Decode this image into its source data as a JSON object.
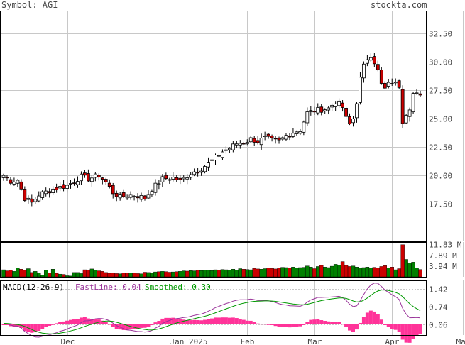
{
  "header": {
    "symbol_label": "Symbol: AGI",
    "brand": "stockta.com"
  },
  "colors": {
    "up": "#008000",
    "down": "#cc0000",
    "candle_down": "#cc0000",
    "text": "#444444",
    "grid": "#c8c8c8",
    "fastline": "#993399",
    "smoothed": "#009900",
    "histogram": "#ff3399"
  },
  "price_axis": {
    "ticks": [
      "32.50",
      "30.00",
      "27.50",
      "25.00",
      "22.50",
      "20.00",
      "17.50"
    ],
    "tick_values": [
      32.5,
      30.0,
      27.5,
      25.0,
      22.5,
      20.0,
      17.5
    ],
    "ylim": [
      14.2,
      34.5
    ]
  },
  "volume_axis": {
    "ticks": [
      "11.83 M",
      "7.89 M",
      "3.94 M"
    ],
    "tick_values": [
      11.83,
      7.89,
      3.94
    ],
    "ylim": [
      0,
      12.8
    ]
  },
  "macd": {
    "label": "MACD(12-26-9)",
    "fast_label": "FastLine: 0.04",
    "smooth_label": "Smoothed: 0.30",
    "ticks": [
      "1.42",
      "0.74",
      "0.06"
    ],
    "tick_values": [
      1.42,
      0.74,
      0.06
    ],
    "ylim": [
      -0.35,
      1.75
    ]
  },
  "x_axis": {
    "labels": [
      "Dec",
      "Jan 2025",
      "Feb",
      "Mar",
      "Apr",
      "May"
    ],
    "label_index": [
      18,
      49,
      69,
      88,
      110,
      130
    ]
  },
  "chart_data": {
    "type": "candlestick",
    "x_unit": "trading day",
    "price_anchors": [
      [
        0,
        20.0
      ],
      [
        2,
        19.5
      ],
      [
        4,
        19.6
      ],
      [
        6,
        18.0
      ],
      [
        8,
        17.6
      ],
      [
        10,
        18.3
      ],
      [
        14,
        18.8
      ],
      [
        18,
        19.1
      ],
      [
        20,
        19.5
      ],
      [
        22,
        19.9
      ],
      [
        24,
        19.7
      ],
      [
        27,
        20.0
      ],
      [
        29,
        19.4
      ],
      [
        31,
        18.5
      ],
      [
        33,
        18.1
      ],
      [
        36,
        18.3
      ],
      [
        38,
        18.2
      ],
      [
        40,
        18.0
      ],
      [
        42,
        18.8
      ],
      [
        45,
        19.7
      ],
      [
        48,
        19.8
      ],
      [
        50,
        19.5
      ],
      [
        53,
        20.2
      ],
      [
        56,
        20.6
      ],
      [
        59,
        21.3
      ],
      [
        62,
        22.1
      ],
      [
        64,
        22.4
      ],
      [
        66,
        22.8
      ],
      [
        68,
        22.9
      ],
      [
        70,
        23.2
      ],
      [
        72,
        23.0
      ],
      [
        74,
        23.3
      ],
      [
        76,
        23.1
      ],
      [
        78,
        23.0
      ],
      [
        80,
        23.5
      ],
      [
        82,
        23.8
      ],
      [
        84,
        24.0
      ],
      [
        86,
        25.5
      ],
      [
        88,
        25.7
      ],
      [
        90,
        25.8
      ],
      [
        92,
        25.9
      ],
      [
        94,
        26.5
      ],
      [
        95,
        26.3
      ],
      [
        96,
        26.0
      ],
      [
        97,
        25.0
      ],
      [
        98,
        24.5
      ],
      [
        99,
        25.0
      ],
      [
        100,
        26.5
      ],
      [
        101,
        28.5
      ],
      [
        102,
        29.6
      ],
      [
        103,
        30.3
      ],
      [
        104,
        30.6
      ],
      [
        105,
        30.0
      ],
      [
        106,
        29.2
      ],
      [
        107,
        28.0
      ],
      [
        108,
        27.6
      ],
      [
        109,
        28.0
      ],
      [
        110,
        28.2
      ],
      [
        112,
        27.9
      ],
      [
        113,
        24.8
      ],
      [
        114,
        25.5
      ],
      [
        115,
        26.0
      ],
      [
        116,
        27.2
      ],
      [
        117,
        27.1
      ],
      [
        118,
        26.9
      ]
    ],
    "volume": [
      2.6,
      2.2,
      2.4,
      2.0,
      3.2,
      2.8,
      2.4,
      3.0,
      1.6,
      2.0,
      1.4,
      0.6,
      2.4,
      1.4,
      2.8,
      1.3,
      1.0,
      0.9,
      0.4,
      0.3,
      1.6,
      1.6,
      1.2,
      2.6,
      2.4,
      2.9,
      2.4,
      2.2,
      2.0,
      1.6,
      1.3,
      1.5,
      1.2,
      1.1,
      1.5,
      1.4,
      1.5,
      1.4,
      1.2,
      1.1,
      1.7,
      1.6,
      1.5,
      1.8,
      1.9,
      2.0,
      1.9,
      1.7,
      1.8,
      1.9,
      2.0,
      2.2,
      2.1,
      2.3,
      2.2,
      2.4,
      2.3,
      2.5,
      2.4,
      2.3,
      2.6,
      2.5,
      2.7,
      2.6,
      2.4,
      2.8,
      2.5,
      3.0,
      2.8,
      2.7,
      2.6,
      3.1,
      2.9,
      2.8,
      3.0,
      3.2,
      3.1,
      2.9,
      3.3,
      3.5,
      3.4,
      3.3,
      3.6,
      3.2,
      3.4,
      3.5,
      4.0,
      3.6,
      3.0,
      3.8,
      4.2,
      3.6,
      3.4,
      3.9,
      4.6,
      4.3,
      5.6,
      4.2,
      3.8,
      4.0,
      3.6,
      3.2,
      3.4,
      3.6,
      3.3,
      3.5,
      3.2,
      3.8,
      4.1,
      3.3,
      3.6,
      2.6,
      3.0,
      11.83,
      6.4,
      5.1,
      5.4,
      3.2,
      2.7
    ]
  }
}
